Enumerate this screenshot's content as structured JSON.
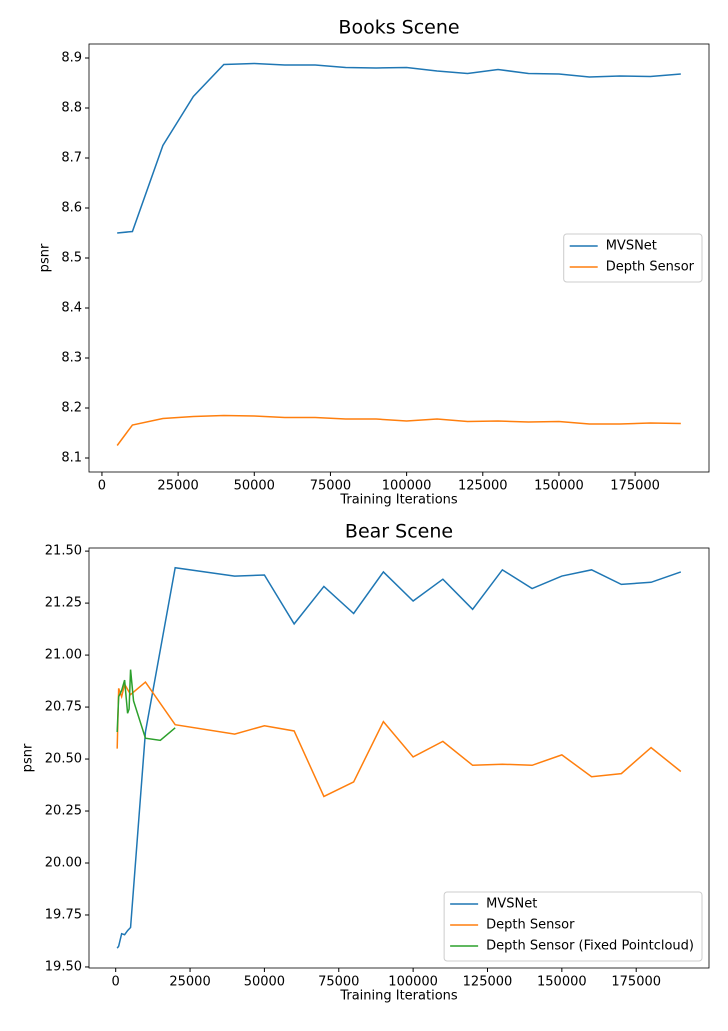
{
  "chart_data": [
    {
      "type": "line",
      "title": "Books Scene",
      "xlabel": "Training Iterations",
      "ylabel": "psnr",
      "xlim": [
        -4250,
        199250
      ],
      "ylim": [
        8.072,
        8.928
      ],
      "xticks": [
        0,
        25000,
        50000,
        75000,
        100000,
        125000,
        150000,
        175000
      ],
      "yticks": [
        8.1,
        8.2,
        8.3,
        8.4,
        8.5,
        8.6,
        8.7,
        8.8,
        8.9
      ],
      "legend": "center right",
      "series": [
        {
          "name": "MVSNet",
          "color": "#1f77b4",
          "x": [
            5000,
            10000,
            20000,
            30000,
            40000,
            50000,
            60000,
            70000,
            80000,
            90000,
            100000,
            110000,
            120000,
            130000,
            140000,
            150000,
            160000,
            170000,
            180000,
            190000
          ],
          "values": [
            8.55,
            8.553,
            8.725,
            8.823,
            8.887,
            8.889,
            8.886,
            8.886,
            8.881,
            8.88,
            8.881,
            8.874,
            8.869,
            8.877,
            8.869,
            8.868,
            8.862,
            8.864,
            8.863,
            8.868
          ]
        },
        {
          "name": "Depth Sensor",
          "color": "#ff7f0e",
          "x": [
            5000,
            10000,
            20000,
            30000,
            40000,
            50000,
            60000,
            70000,
            80000,
            90000,
            100000,
            110000,
            120000,
            130000,
            140000,
            150000,
            160000,
            170000,
            180000,
            190000
          ],
          "values": [
            8.125,
            8.166,
            8.179,
            8.183,
            8.185,
            8.184,
            8.181,
            8.181,
            8.178,
            8.178,
            8.174,
            8.178,
            8.173,
            8.174,
            8.172,
            8.173,
            8.168,
            8.168,
            8.17,
            8.169
          ]
        }
      ]
    },
    {
      "type": "line",
      "title": "Bear Scene",
      "xlabel": "Training Iterations",
      "ylabel": "psnr",
      "xlim": [
        -8975,
        199475
      ],
      "ylim": [
        19.495,
        21.515
      ],
      "xticks": [
        0,
        25000,
        50000,
        75000,
        100000,
        125000,
        150000,
        175000
      ],
      "yticks": [
        {
          "value": 19.5,
          "label": "19.50"
        },
        19.75,
        {
          "value": 20,
          "label": "20.00"
        },
        20.25,
        {
          "value": 20.5,
          "label": "20.50"
        },
        20.75,
        {
          "value": 21,
          "label": "21.00"
        },
        21.25,
        {
          "value": 21.5,
          "label": "21.50"
        }
      ],
      "legend": "lower right",
      "series": [
        {
          "name": "MVSNet",
          "color": "#1f77b4",
          "x": [
            500,
            1000,
            2000,
            3000,
            4000,
            5000,
            10000,
            20000,
            40000,
            50000,
            60000,
            70000,
            80000,
            90000,
            100000,
            110000,
            120000,
            130000,
            140000,
            150000,
            160000,
            170000,
            180000,
            190000
          ],
          "values": [
            19.59,
            19.6,
            19.66,
            19.655,
            19.675,
            19.69,
            20.63,
            21.42,
            21.38,
            21.385,
            21.15,
            21.33,
            21.2,
            21.4,
            21.26,
            21.365,
            21.22,
            21.41,
            21.32,
            21.38,
            21.41,
            21.34,
            21.35,
            21.4
          ]
        },
        {
          "name": "Depth Sensor",
          "color": "#ff7f0e",
          "x": [
            500,
            1000,
            2000,
            3000,
            5000,
            10000,
            20000,
            40000,
            50000,
            60000,
            70000,
            80000,
            90000,
            100000,
            110000,
            120000,
            130000,
            140000,
            150000,
            160000,
            170000,
            180000,
            190000
          ],
          "values": [
            20.55,
            20.84,
            20.8,
            20.86,
            20.81,
            20.87,
            20.665,
            20.62,
            20.66,
            20.635,
            20.32,
            20.39,
            20.68,
            20.51,
            20.585,
            20.47,
            20.475,
            20.47,
            20.52,
            20.415,
            20.43,
            20.555,
            20.44
          ]
        },
        {
          "name": "Depth Sensor (Fixed Pointcloud)",
          "color": "#2ca02c",
          "x": [
            500,
            1000,
            2000,
            3000,
            4000,
            4500,
            5000,
            6000,
            10000,
            15000,
            20000
          ],
          "values": [
            20.63,
            20.8,
            20.83,
            20.88,
            20.72,
            20.74,
            20.93,
            20.78,
            20.6,
            20.59,
            20.65
          ]
        }
      ]
    }
  ]
}
